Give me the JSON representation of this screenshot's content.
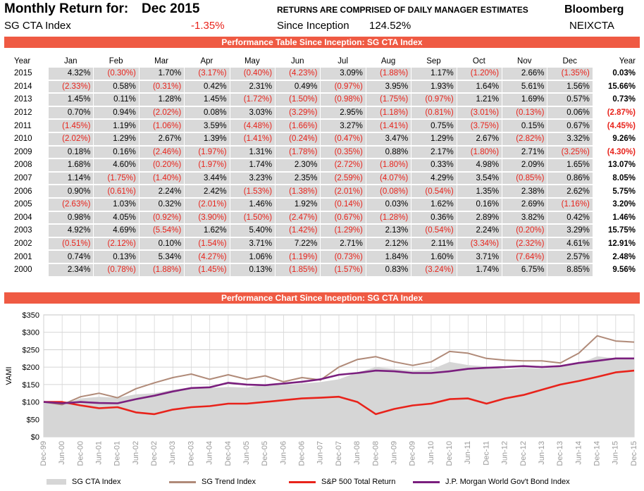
{
  "header": {
    "monthly_return_label": "Monthly Return for:",
    "month": "Dec 2015",
    "index_name": "SG CTA Index",
    "monthly_return": "-1.35%",
    "caption": "RETURNS ARE COMPRISED OF DAILY MANAGER ESTIMATES",
    "since_label": "Since Inception",
    "since_value": "124.52%",
    "source": "Bloomberg",
    "ticker": "NEIXCTA"
  },
  "table_banner": "Performance Table Since Inception: SG CTA Index",
  "chart_banner": "Performance Chart Since Inception: SG CTA Index",
  "table": {
    "headers": [
      "Year",
      "Jan",
      "Feb",
      "Mar",
      "Apr",
      "May",
      "Jun",
      "Jul",
      "Aug",
      "Sep",
      "Oct",
      "Nov",
      "Dec",
      "Year"
    ],
    "rows": [
      [
        "2015",
        "4.32%",
        "(0.30%)",
        "1.70%",
        "(3.17%)",
        "(0.40%)",
        "(4.23%)",
        "3.09%",
        "(1.88%)",
        "1.17%",
        "(1.20%)",
        "2.66%",
        "(1.35%)",
        "0.03%"
      ],
      [
        "2014",
        "(2.33%)",
        "0.58%",
        "(0.31%)",
        "0.42%",
        "2.31%",
        "0.49%",
        "(0.97%)",
        "3.95%",
        "1.93%",
        "1.64%",
        "5.61%",
        "1.56%",
        "15.66%"
      ],
      [
        "2013",
        "1.45%",
        "0.11%",
        "1.28%",
        "1.45%",
        "(1.72%)",
        "(1.50%)",
        "(0.98%)",
        "(1.75%)",
        "(0.97%)",
        "1.21%",
        "1.69%",
        "0.57%",
        "0.73%"
      ],
      [
        "2012",
        "0.70%",
        "0.94%",
        "(2.02%)",
        "0.08%",
        "3.03%",
        "(3.29%)",
        "2.95%",
        "(1.18%)",
        "(0.81%)",
        "(3.01%)",
        "(0.13%)",
        "0.06%",
        "(2.87%)"
      ],
      [
        "2011",
        "(1.45%)",
        "1.19%",
        "(1.06%)",
        "3.59%",
        "(4.48%)",
        "(1.66%)",
        "3.27%",
        "(1.41%)",
        "0.75%",
        "(3.75%)",
        "0.15%",
        "0.67%",
        "(4.45%)"
      ],
      [
        "2010",
        "(2.02%)",
        "1.29%",
        "2.67%",
        "1.39%",
        "(1.41%)",
        "(0.24%)",
        "(0.47%)",
        "3.47%",
        "1.29%",
        "2.67%",
        "(2.82%)",
        "3.32%",
        "9.26%"
      ],
      [
        "2009",
        "0.18%",
        "0.16%",
        "(2.46%)",
        "(1.97%)",
        "1.31%",
        "(1.78%)",
        "(0.35%)",
        "0.88%",
        "2.17%",
        "(1.80%)",
        "2.71%",
        "(3.25%)",
        "(4.30%)"
      ],
      [
        "2008",
        "1.68%",
        "4.60%",
        "(0.20%)",
        "(1.97%)",
        "1.74%",
        "2.30%",
        "(2.72%)",
        "(1.80%)",
        "0.33%",
        "4.98%",
        "2.09%",
        "1.65%",
        "13.07%"
      ],
      [
        "2007",
        "1.14%",
        "(1.75%)",
        "(1.40%)",
        "3.44%",
        "3.23%",
        "2.35%",
        "(2.59%)",
        "(4.07%)",
        "4.29%",
        "3.54%",
        "(0.85%)",
        "0.86%",
        "8.05%"
      ],
      [
        "2006",
        "0.90%",
        "(0.61%)",
        "2.24%",
        "2.42%",
        "(1.53%)",
        "(1.38%)",
        "(2.01%)",
        "(0.08%)",
        "(0.54%)",
        "1.35%",
        "2.38%",
        "2.62%",
        "5.75%"
      ],
      [
        "2005",
        "(2.63%)",
        "1.03%",
        "0.32%",
        "(2.01%)",
        "1.46%",
        "1.92%",
        "(0.14%)",
        "0.03%",
        "1.62%",
        "0.16%",
        "2.69%",
        "(1.16%)",
        "3.20%"
      ],
      [
        "2004",
        "0.98%",
        "4.05%",
        "(0.92%)",
        "(3.90%)",
        "(1.50%)",
        "(2.47%)",
        "(0.67%)",
        "(1.28%)",
        "0.36%",
        "2.89%",
        "3.82%",
        "0.42%",
        "1.46%"
      ],
      [
        "2003",
        "4.92%",
        "4.69%",
        "(5.54%)",
        "1.62%",
        "5.40%",
        "(1.42%)",
        "(1.29%)",
        "2.13%",
        "(0.54%)",
        "2.24%",
        "(0.20%)",
        "3.29%",
        "15.75%"
      ],
      [
        "2002",
        "(0.51%)",
        "(2.12%)",
        "0.10%",
        "(1.54%)",
        "3.71%",
        "7.22%",
        "2.71%",
        "2.12%",
        "2.11%",
        "(3.34%)",
        "(2.32%)",
        "4.61%",
        "12.91%"
      ],
      [
        "2001",
        "0.74%",
        "0.13%",
        "5.34%",
        "(4.27%)",
        "1.06%",
        "(1.19%)",
        "(0.73%)",
        "1.84%",
        "1.60%",
        "3.71%",
        "(7.64%)",
        "2.57%",
        "2.48%"
      ],
      [
        "2000",
        "2.34%",
        "(0.78%)",
        "(1.88%)",
        "(1.45%)",
        "0.13%",
        "(1.85%)",
        "(1.57%)",
        "0.83%",
        "(3.24%)",
        "1.74%",
        "6.75%",
        "8.85%",
        "9.56%"
      ]
    ]
  },
  "colors": {
    "banner": "#ef5a43",
    "negative": "#e8231b",
    "cell": "#d9d9d9",
    "cta_area": "#d6d6d6",
    "trend": "#b08a78",
    "sp500": "#e8231b",
    "bond": "#7a1f7e"
  },
  "chart_data": {
    "type": "line",
    "ylabel": "VAMI",
    "ylim": [
      0,
      350
    ],
    "yticks": [
      "$0",
      "$50",
      "$100",
      "$150",
      "$200",
      "$250",
      "$300",
      "$350"
    ],
    "ytick_values": [
      0,
      50,
      100,
      150,
      200,
      250,
      300,
      350
    ],
    "xticks": [
      "Dec-99",
      "Jun-00",
      "Dec-00",
      "Jun-01",
      "Dec-01",
      "Jun-02",
      "Dec-02",
      "Jun-03",
      "Dec-03",
      "Jun-04",
      "Dec-04",
      "Jun-05",
      "Dec-05",
      "Jun-06",
      "Dec-06",
      "Jun-07",
      "Dec-07",
      "Jun-08",
      "Dec-08",
      "Jun-09",
      "Dec-09",
      "Jun-10",
      "Dec-10",
      "Jun-11",
      "Dec-11",
      "Jun-12",
      "Dec-12",
      "Jun-13",
      "Dec-13",
      "Jun-14",
      "Dec-14",
      "Jun-15",
      "Dec-15"
    ],
    "grid": true,
    "legend_position": "bottom",
    "x": [
      "Dec-99",
      "Jun-00",
      "Dec-00",
      "Jun-01",
      "Dec-01",
      "Jun-02",
      "Dec-02",
      "Jun-03",
      "Dec-03",
      "Jun-04",
      "Dec-04",
      "Jun-05",
      "Dec-05",
      "Jun-06",
      "Dec-06",
      "Jun-07",
      "Dec-07",
      "Jun-08",
      "Dec-08",
      "Jun-09",
      "Dec-09",
      "Jun-10",
      "Dec-10",
      "Jun-11",
      "Dec-11",
      "Jun-12",
      "Dec-12",
      "Jun-13",
      "Dec-13",
      "Jun-14",
      "Dec-14",
      "Jun-15",
      "Dec-15"
    ],
    "series": [
      {
        "name": "SG CTA Index",
        "kind": "area",
        "color": "#d6d6d6",
        "values": [
          100,
          93,
          110,
          115,
          112,
          122,
          125,
          135,
          142,
          140,
          143,
          141,
          150,
          148,
          153,
          157,
          165,
          185,
          200,
          195,
          190,
          193,
          215,
          206,
          202,
          194,
          198,
          196,
          200,
          210,
          231,
          225,
          225
        ]
      },
      {
        "name": "SG Trend Index",
        "kind": "line",
        "color": "#b08a78",
        "values": [
          100,
          92,
          115,
          125,
          112,
          138,
          155,
          170,
          180,
          165,
          178,
          165,
          175,
          158,
          170,
          163,
          200,
          222,
          230,
          215,
          205,
          215,
          245,
          240,
          225,
          220,
          218,
          218,
          212,
          240,
          290,
          275,
          272
        ]
      },
      {
        "name": "S&P 500 Total Return",
        "kind": "line",
        "color": "#e8231b",
        "values": [
          100,
          100,
          90,
          82,
          85,
          70,
          65,
          78,
          85,
          88,
          95,
          95,
          100,
          105,
          110,
          112,
          115,
          100,
          65,
          80,
          90,
          95,
          108,
          110,
          95,
          110,
          120,
          135,
          150,
          160,
          172,
          185,
          190
        ]
      },
      {
        "name": "J.P. Morgan World Gov't Bond Index",
        "kind": "line",
        "color": "#7a1f7e",
        "values": [
          100,
          96,
          100,
          97,
          96,
          108,
          118,
          130,
          140,
          142,
          155,
          150,
          148,
          153,
          158,
          165,
          178,
          183,
          190,
          188,
          183,
          183,
          188,
          195,
          198,
          200,
          203,
          200,
          203,
          212,
          218,
          225,
          225
        ]
      }
    ]
  }
}
